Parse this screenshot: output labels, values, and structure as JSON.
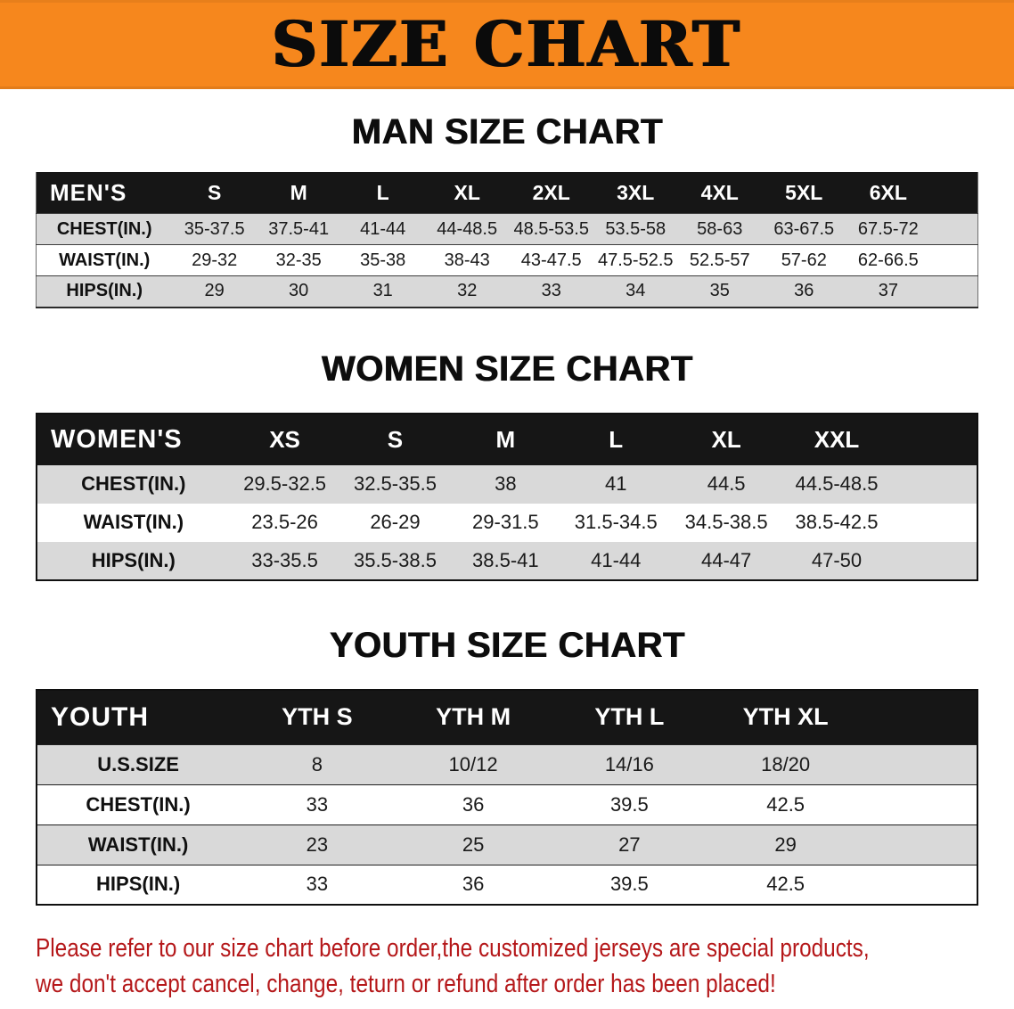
{
  "banner": {
    "title": "SIZE CHART",
    "bg_color": "#f6871d",
    "title_color": "#0b0b0b"
  },
  "chart_data": [
    {
      "type": "table",
      "title": "MAN SIZE CHART",
      "header": [
        "MEN'S",
        "S",
        "M",
        "L",
        "XL",
        "2XL",
        "3XL",
        "4XL",
        "5XL",
        "6XL"
      ],
      "rows": [
        [
          "CHEST(IN.)",
          "35-37.5",
          "37.5-41",
          "41-44",
          "44-48.5",
          "48.5-53.5",
          "53.5-58",
          "58-63",
          "63-67.5",
          "67.5-72"
        ],
        [
          "WAIST(IN.)",
          "29-32",
          "32-35",
          "35-38",
          "38-43",
          "43-47.5",
          "47.5-52.5",
          "52.5-57",
          "57-62",
          "62-66.5"
        ],
        [
          "HIPS(IN.)",
          "29",
          "30",
          "31",
          "32",
          "33",
          "34",
          "35",
          "36",
          "37"
        ]
      ]
    },
    {
      "type": "table",
      "title": "WOMEN SIZE CHART",
      "header": [
        "WOMEN'S",
        "XS",
        "S",
        "M",
        "L",
        "XL",
        "XXL"
      ],
      "rows": [
        [
          "CHEST(IN.)",
          "29.5-32.5",
          "32.5-35.5",
          "38",
          "41",
          "44.5",
          "44.5-48.5"
        ],
        [
          "WAIST(IN.)",
          "23.5-26",
          "26-29",
          "29-31.5",
          "31.5-34.5",
          "34.5-38.5",
          "38.5-42.5"
        ],
        [
          "HIPS(IN.)",
          "33-35.5",
          "35.5-38.5",
          "38.5-41",
          "41-44",
          "44-47",
          "47-50"
        ]
      ]
    },
    {
      "type": "table",
      "title": "YOUTH SIZE CHART",
      "header": [
        "YOUTH",
        "YTH S",
        "YTH M",
        "YTH L",
        "YTH XL"
      ],
      "rows": [
        [
          "U.S.SIZE",
          "8",
          "10/12",
          "14/16",
          "18/20"
        ],
        [
          "CHEST(IN.)",
          "33",
          "36",
          "39.5",
          "42.5"
        ],
        [
          "WAIST(IN.)",
          "23",
          "25",
          "27",
          "29"
        ],
        [
          "HIPS(IN.)",
          "33",
          "36",
          "39.5",
          "42.5"
        ]
      ]
    }
  ],
  "footer": {
    "line1": "Please refer to our size chart before order,the customized jerseys are special products,",
    "line2": "we don't accept cancel, change, teturn or refund after order has been placed!",
    "text_color": "#b5181a"
  },
  "colors": {
    "table_header_bg": "#161616",
    "shaded_row_bg": "#d9d9d9",
    "plain_row_bg": "#ffffff"
  }
}
